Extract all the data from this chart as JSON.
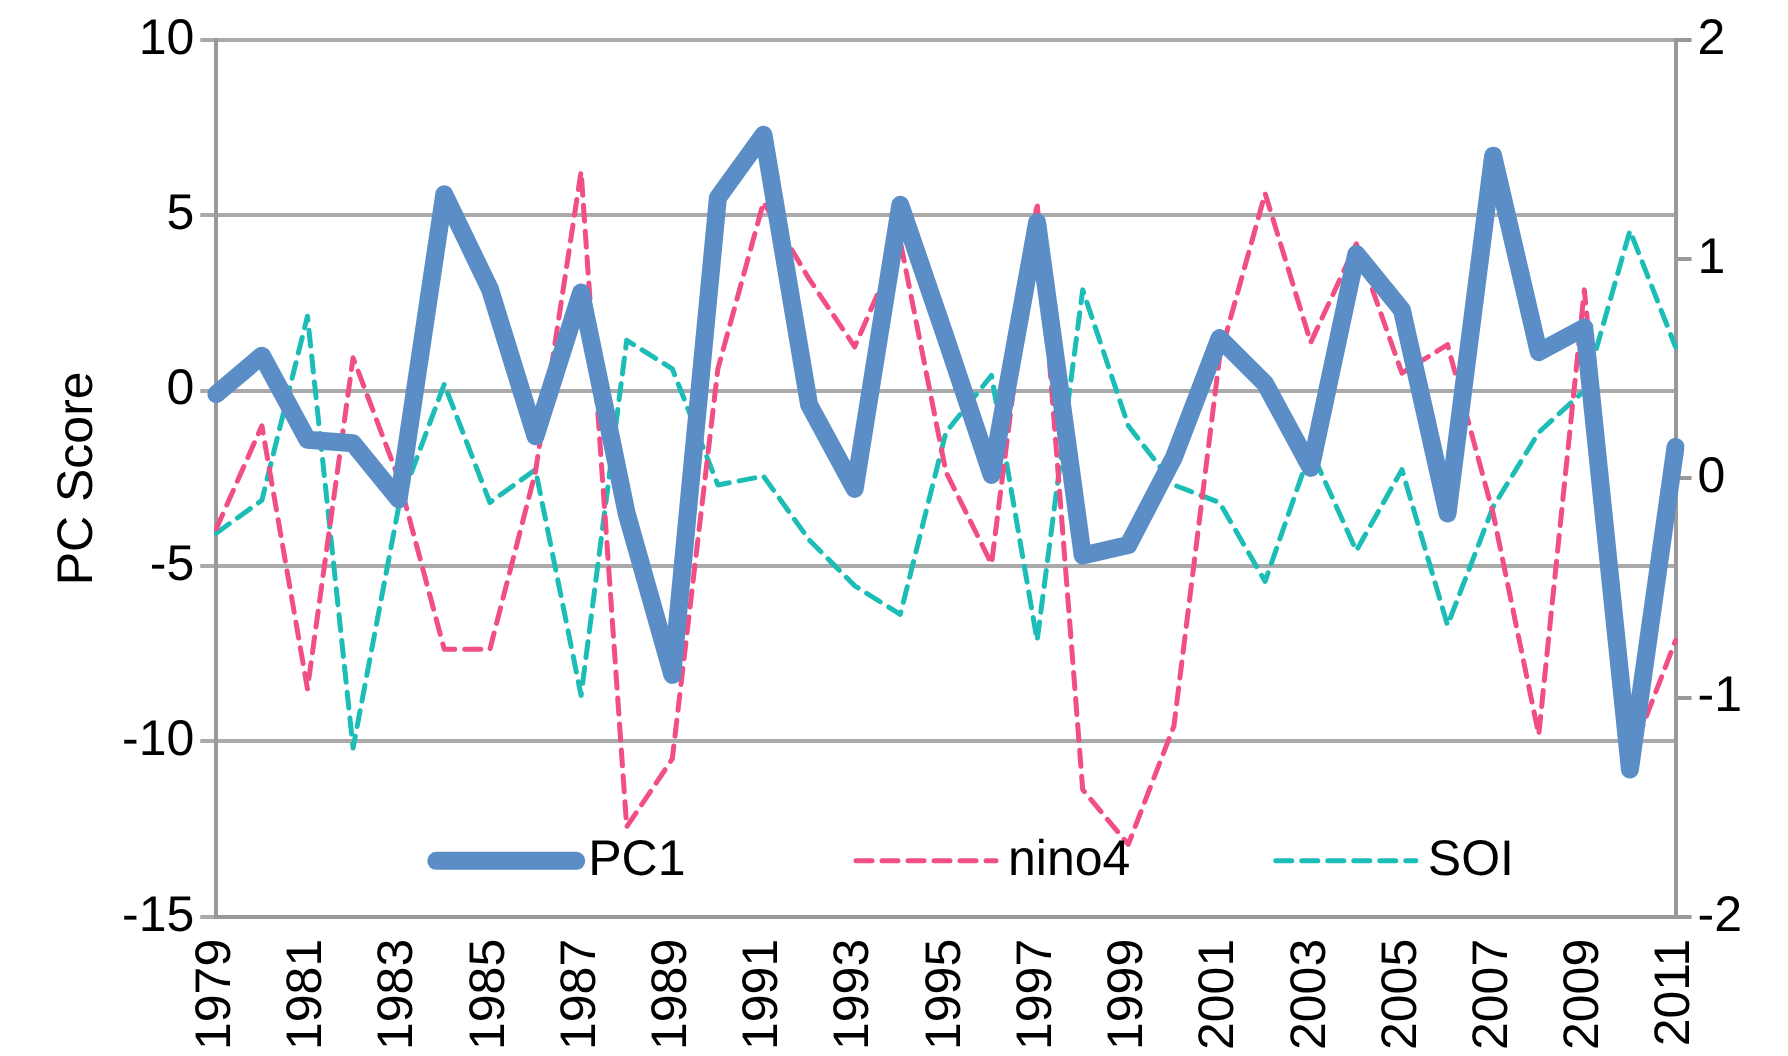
{
  "chart_data": {
    "type": "line",
    "ylabel": "PC Score",
    "categories": [
      "1979",
      null,
      "1981",
      null,
      "1983",
      null,
      "1985",
      null,
      "1987",
      null,
      "1989",
      null,
      "1991",
      null,
      "1993",
      null,
      "1995",
      null,
      "1997",
      null,
      "1999",
      null,
      "2001",
      null,
      "2003",
      null,
      "2005",
      null,
      "2007",
      null,
      "2009",
      null,
      "2011"
    ],
    "series": [
      {
        "name": "PC1",
        "color": "#5b8ec7",
        "line_style": "solid",
        "values": [
          -0.1,
          1.0,
          -1.4,
          -1.5,
          -3.1,
          5.6,
          2.9,
          -1.3,
          2.8,
          -3.5,
          -8.1,
          5.5,
          7.3,
          -0.4,
          -2.8,
          5.3,
          1.5,
          -2.4,
          4.8,
          -4.7,
          -4.4,
          -1.9,
          1.5,
          0.2,
          -2.2,
          3.9,
          2.3,
          -3.5,
          6.7,
          1.1,
          1.8,
          -10.8,
          -1.6
        ]
      },
      {
        "name": "nino4",
        "color": "#f04e85",
        "line_style": "dashed",
        "axis": "y2",
        "values": [
          -0.23,
          0.24,
          -0.96,
          0.55,
          0.0,
          -0.78,
          -0.78,
          0.03,
          1.4,
          -1.59,
          -1.28,
          0.5,
          1.26,
          0.91,
          0.6,
          1.08,
          0.03,
          -0.39,
          1.26,
          -1.42,
          -1.67,
          -1.13,
          0.55,
          1.3,
          0.62,
          1.07,
          0.48,
          0.61,
          -0.16,
          -1.17,
          0.86,
          -1.28,
          -0.74
        ]
      },
      {
        "name": "SOI",
        "color": "#1cbdb6",
        "line_style": "dashed",
        "axis": "y2",
        "values": [
          -0.25,
          -0.1,
          0.74,
          -1.23,
          -0.13,
          0.43,
          -0.11,
          0.04,
          -0.99,
          0.63,
          0.5,
          -0.03,
          0.01,
          -0.28,
          -0.49,
          -0.62,
          0.21,
          0.47,
          -0.74,
          0.86,
          0.24,
          -0.03,
          -0.11,
          -0.47,
          0.13,
          -0.33,
          0.04,
          -0.67,
          -0.13,
          0.21,
          0.4,
          1.13,
          0.6
        ]
      }
    ],
    "ylim": [
      -15,
      10
    ],
    "yticks": [
      -15,
      -10,
      -5,
      0,
      5,
      10
    ],
    "y2lim": [
      -2,
      2
    ],
    "y2ticks": [
      -2,
      -1,
      0,
      1,
      2
    ],
    "grid": "y",
    "legend": "bottom",
    "marker": "none"
  }
}
